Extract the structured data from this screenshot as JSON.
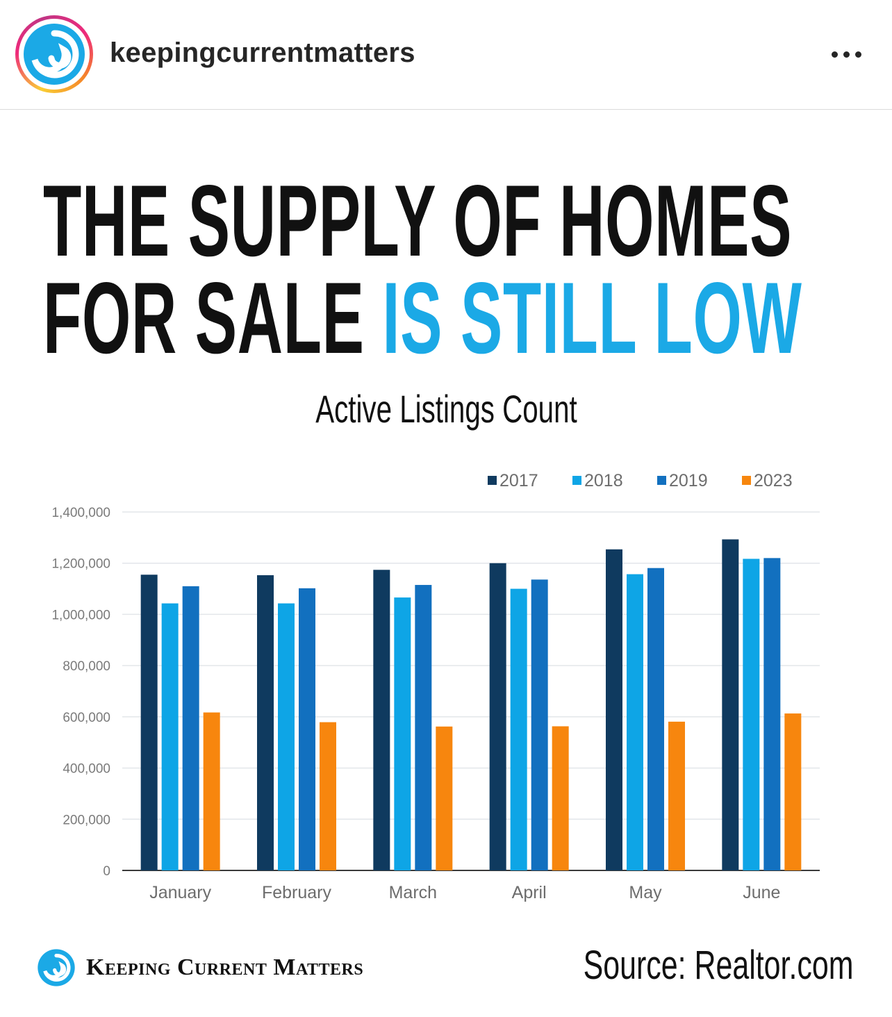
{
  "header": {
    "username": "keepingcurrentmatters",
    "avatar_icon": "kcm-swirl-logo-icon",
    "more_icon": "more-options-icon"
  },
  "post": {
    "headline_line1": "THE SUPPLY OF HOMES",
    "headline_line2_black": "FOR SALE",
    "headline_line2_blue": "IS STILL LOW",
    "accent_color": "#1ba9e6",
    "footer_brand": "Keeping Current Matters",
    "footer_icon": "kcm-swirl-logo-icon",
    "source": "Source: Realtor.com"
  },
  "chart_data": {
    "type": "bar",
    "title": "Active Listings Count",
    "categories": [
      "January",
      "February",
      "March",
      "April",
      "May",
      "June"
    ],
    "series": [
      {
        "name": "2017",
        "color": "#0f3a5f",
        "values": [
          1155000,
          1153000,
          1174000,
          1200000,
          1254000,
          1293000
        ]
      },
      {
        "name": "2018",
        "color": "#0ea5e6",
        "values": [
          1043000,
          1043000,
          1066000,
          1100000,
          1157000,
          1217000
        ]
      },
      {
        "name": "2019",
        "color": "#1270bf",
        "values": [
          1110000,
          1102000,
          1115000,
          1136000,
          1181000,
          1220000
        ]
      },
      {
        "name": "2023",
        "color": "#f7860e",
        "values": [
          617000,
          579000,
          562000,
          563000,
          581000,
          613000
        ]
      }
    ],
    "y_ticks": [
      "0",
      "200,000",
      "400,000",
      "600,000",
      "800,000",
      "1,000,000",
      "1,200,000",
      "1,400,000"
    ],
    "ylim": [
      0,
      1400000
    ],
    "grid": true,
    "legend_position": "top-right",
    "xlabel": "",
    "ylabel": ""
  }
}
